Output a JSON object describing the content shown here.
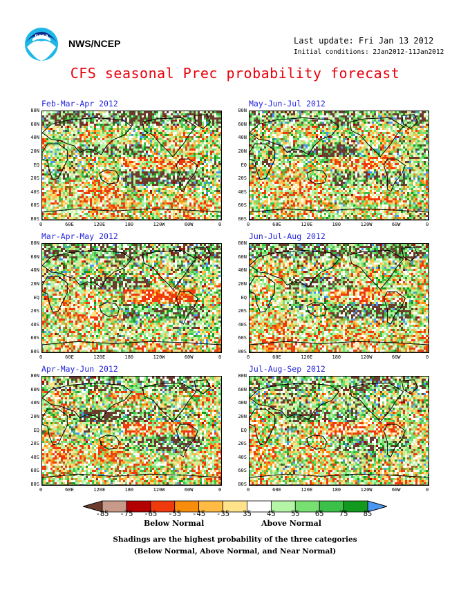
{
  "header": {
    "agency": "NWS/NCEP",
    "last_update": "Last update: Fri Jan 13 2012",
    "initial_conditions": "Initial conditions: 2Jan2012-11Jan2012",
    "title": "CFS seasonal Prec probability forecast",
    "logo_icon": "noaa-logo-icon"
  },
  "panels": [
    {
      "title": "Feb-Mar-Apr 2012"
    },
    {
      "title": "May-Jun-Jul 2012"
    },
    {
      "title": "Mar-Apr-May 2012"
    },
    {
      "title": "Jun-Jul-Aug 2012"
    },
    {
      "title": "Apr-May-Jun 2012"
    },
    {
      "title": "Jul-Aug-Sep 2012"
    }
  ],
  "lat_labels": [
    "80N",
    "60N",
    "40N",
    "20N",
    "EQ",
    "20S",
    "40S",
    "60S",
    "80S"
  ],
  "lon_labels": [
    "0",
    "60E",
    "120E",
    "180",
    "120W",
    "60W",
    "0"
  ],
  "colorbar": {
    "labels": [
      "-85",
      "-75",
      "-65",
      "-55",
      "-45",
      "-35",
      "35",
      "45",
      "55",
      "65",
      "75",
      "85"
    ],
    "colors": [
      "#6b3b2e",
      "#c89a8a",
      "#b30000",
      "#ee3a0c",
      "#f88c0c",
      "#ffbb44",
      "#ffe38a",
      "#ffffff",
      "#b4f5a6",
      "#78e070",
      "#3cc04a",
      "#129a1e",
      "#4a96f0"
    ],
    "below_label": "Below Normal",
    "above_label": "Above Normal"
  },
  "notes": {
    "line1": "Shadings are the highest probability of the three categories",
    "line2": "(Below Normal, Above Normal, and Near Normal)"
  }
}
